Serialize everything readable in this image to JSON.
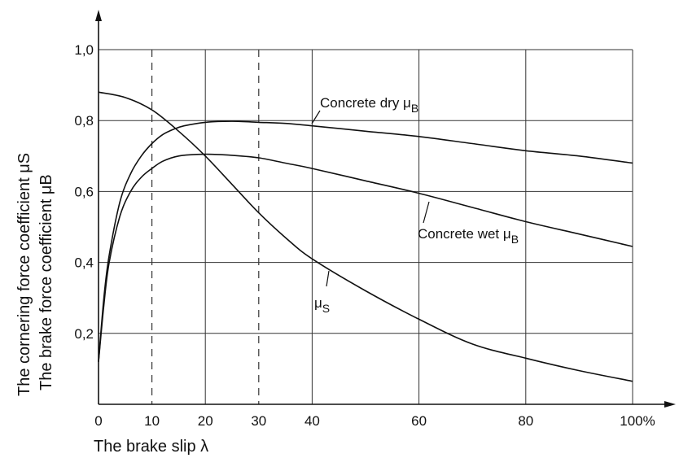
{
  "chart_data": {
    "type": "line",
    "xlabel": "The brake slip λ",
    "ylabel_line1": "The cornering force coefficient μS",
    "ylabel_line2": "The brake force coefficient μB",
    "xlim": [
      0,
      100
    ],
    "ylim": [
      0,
      1.0
    ],
    "x_ticks": [
      {
        "value": 0,
        "label": "0"
      },
      {
        "value": 10,
        "label": "10"
      },
      {
        "value": 20,
        "label": "20"
      },
      {
        "value": 30,
        "label": "30"
      },
      {
        "value": 40,
        "label": "40"
      },
      {
        "value": 60,
        "label": "60"
      },
      {
        "value": 80,
        "label": "80"
      },
      {
        "value": 100,
        "label": "100%"
      }
    ],
    "y_ticks": [
      {
        "value": 0.2,
        "label": "0,2"
      },
      {
        "value": 0.4,
        "label": "0,4"
      },
      {
        "value": 0.6,
        "label": "0,6"
      },
      {
        "value": 0.8,
        "label": "0,8"
      },
      {
        "value": 1.0,
        "label": "1,0"
      }
    ],
    "vertical_solid_gridlines": [
      20,
      40,
      60,
      80,
      100
    ],
    "vertical_dashed_gridlines": [
      10,
      30
    ],
    "grid": true,
    "series": [
      {
        "name": "Concrete dry μB",
        "x": [
          0,
          1,
          2,
          4,
          6,
          8,
          10,
          12,
          14,
          16,
          20,
          25,
          30,
          35,
          40,
          50,
          60,
          70,
          80,
          90,
          100
        ],
        "y": [
          0.12,
          0.3,
          0.42,
          0.57,
          0.65,
          0.7,
          0.735,
          0.76,
          0.775,
          0.785,
          0.795,
          0.798,
          0.795,
          0.792,
          0.785,
          0.77,
          0.755,
          0.735,
          0.715,
          0.7,
          0.68
        ]
      },
      {
        "name": "Concrete wet μB",
        "x": [
          0,
          1,
          2,
          4,
          6,
          8,
          10,
          12,
          15,
          20,
          25,
          30,
          35,
          40,
          50,
          60,
          70,
          80,
          90,
          100
        ],
        "y": [
          0.12,
          0.28,
          0.4,
          0.53,
          0.6,
          0.64,
          0.665,
          0.685,
          0.7,
          0.705,
          0.702,
          0.695,
          0.68,
          0.665,
          0.63,
          0.595,
          0.555,
          0.515,
          0.48,
          0.445
        ]
      },
      {
        "name": "μS",
        "x": [
          0,
          5,
          10,
          15,
          20,
          25,
          30,
          35,
          40,
          50,
          60,
          70,
          80,
          90,
          100
        ],
        "y": [
          0.88,
          0.865,
          0.83,
          0.77,
          0.7,
          0.62,
          0.54,
          0.47,
          0.41,
          0.32,
          0.24,
          0.17,
          0.13,
          0.095,
          0.065
        ]
      }
    ],
    "annotations": [
      {
        "series": "Concrete dry μB",
        "base": "Concrete dry μ",
        "sub": "B"
      },
      {
        "series": "Concrete wet μB",
        "base": "Concrete wet μ",
        "sub": "B"
      },
      {
        "series": "μS",
        "base": "μ",
        "sub": "S"
      }
    ]
  }
}
